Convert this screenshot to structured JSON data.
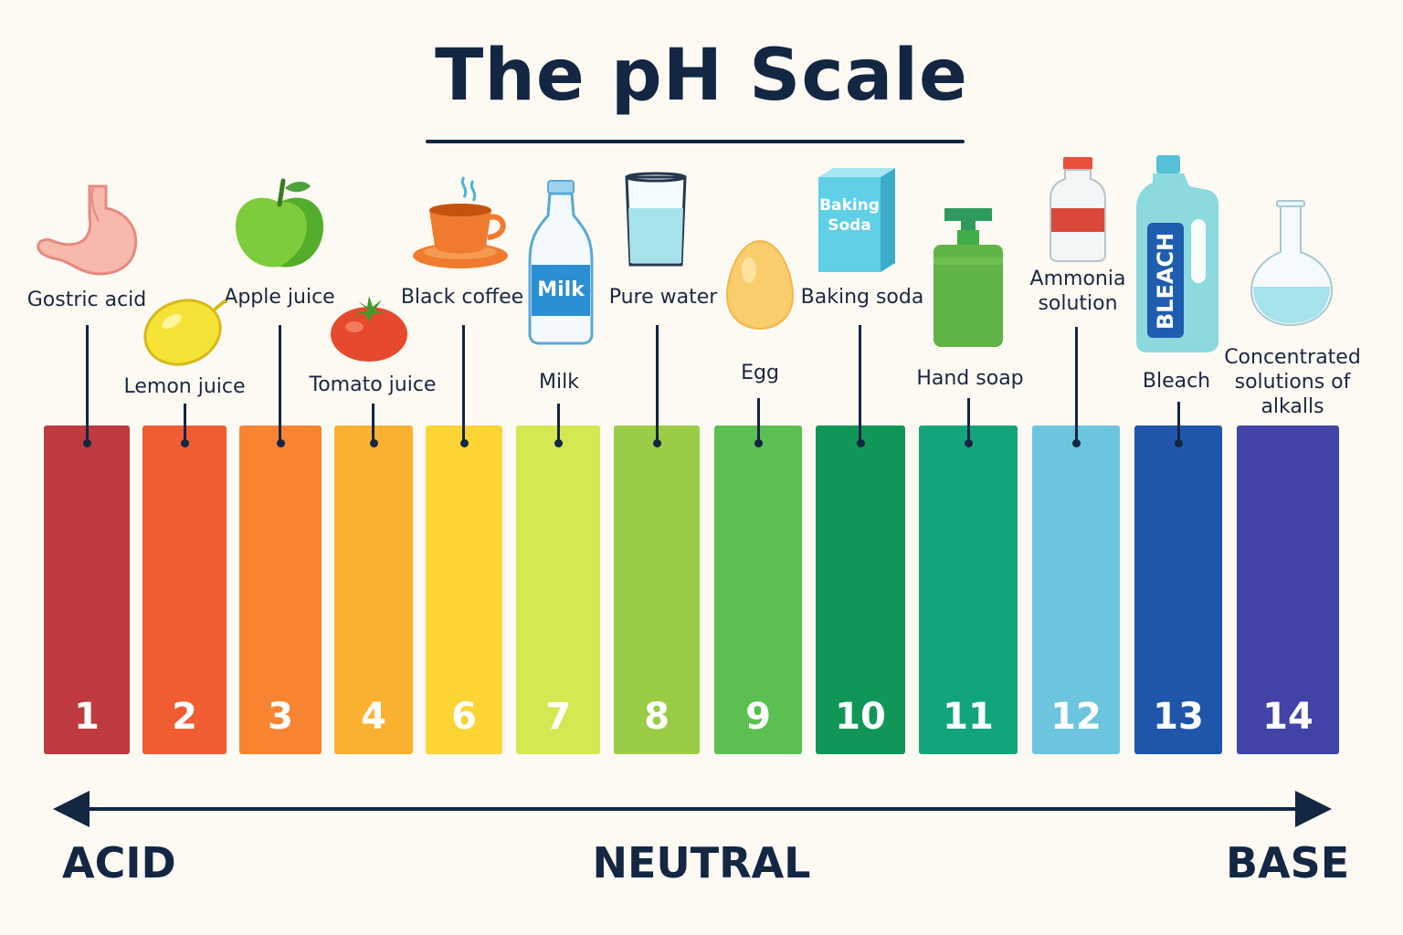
{
  "title": "The pH Scale",
  "scale": {
    "left_label": "ACID",
    "center_label": "NEUTRAL",
    "right_label": "BASE"
  },
  "bars": [
    {
      "number": "1",
      "color": "#be3a3e"
    },
    {
      "number": "2",
      "color": "#f05d33"
    },
    {
      "number": "3",
      "color": "#f88432"
    },
    {
      "number": "4",
      "color": "#fbb130"
    },
    {
      "number": "6",
      "color": "#fcd535"
    },
    {
      "number": "7",
      "color": "#d3e851"
    },
    {
      "number": "8",
      "color": "#9acc45"
    },
    {
      "number": "9",
      "color": "#5bbf52"
    },
    {
      "number": "10",
      "color": "#109758"
    },
    {
      "number": "11",
      "color": "#12a57c"
    },
    {
      "number": "12",
      "color": "#6cc5df"
    },
    {
      "number": "13",
      "color": "#1f56ac"
    },
    {
      "number": "14",
      "color": "#4143a6"
    }
  ],
  "substances": [
    {
      "label": "Gostric acid",
      "icon": "stomach-icon"
    },
    {
      "label": "Lemon juice",
      "icon": "lemon-icon"
    },
    {
      "label": "Apple juice",
      "icon": "apple-icon"
    },
    {
      "label": "Tomato juice",
      "icon": "tomato-icon"
    },
    {
      "label": "Black coffee",
      "icon": "coffee-cup-icon"
    },
    {
      "label": "Milk",
      "icon": "milk-bottle-icon",
      "icon_text": "Milk"
    },
    {
      "label": "Pure water",
      "icon": "water-glass-icon"
    },
    {
      "label": "Egg",
      "icon": "egg-icon"
    },
    {
      "label": "Baking soda",
      "icon": "baking-soda-box-icon",
      "icon_text_1": "Baking",
      "icon_text_2": "Soda"
    },
    {
      "label": "Hand soap",
      "icon": "soap-pump-icon"
    },
    {
      "label_line1": "Ammonia",
      "label_line2": "solution",
      "icon": "ammonia-bottle-icon"
    },
    {
      "label": "Bleach",
      "icon": "bleach-jug-icon",
      "icon_text": "BLEACH"
    },
    {
      "label_line1": "Concentrated",
      "label_line2": "solutions of",
      "label_line3": "alkalls",
      "icon": "flask-icon"
    }
  ]
}
